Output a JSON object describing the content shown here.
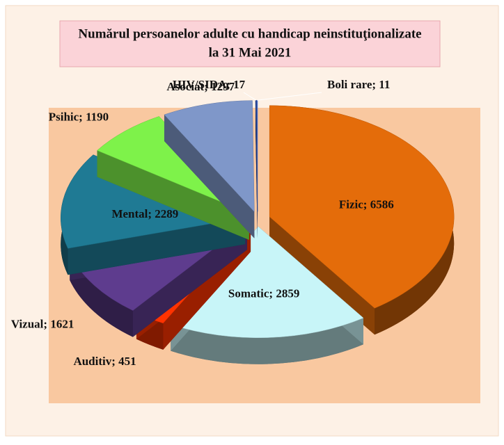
{
  "chart_data": {
    "type": "pie",
    "title": "Numărul persoanelor adulte cu handicap neinstituţionalizate",
    "subtitle": "la  31 Mai 2021",
    "values": [
      6586,
      2859,
      451,
      1621,
      2289,
      1190,
      1297,
      17,
      11
    ],
    "value_labels": [
      "Fizic; 6586",
      "Somatic; 2859",
      "Auditiv; 451",
      "Vizual; 1621",
      "Mental; 2289",
      "Psihic; 1190",
      "Asociat; 1297",
      "HIV/SIDA; 17",
      "Boli rare; 11"
    ],
    "colors": [
      "#e46c0a",
      "#c8f5f8",
      "#ff3300",
      "#5e3c8e",
      "#1f7a94",
      "#7ef24a",
      "#7f97c9",
      "#1f3f8f",
      "#4a6fd0"
    ]
  }
}
